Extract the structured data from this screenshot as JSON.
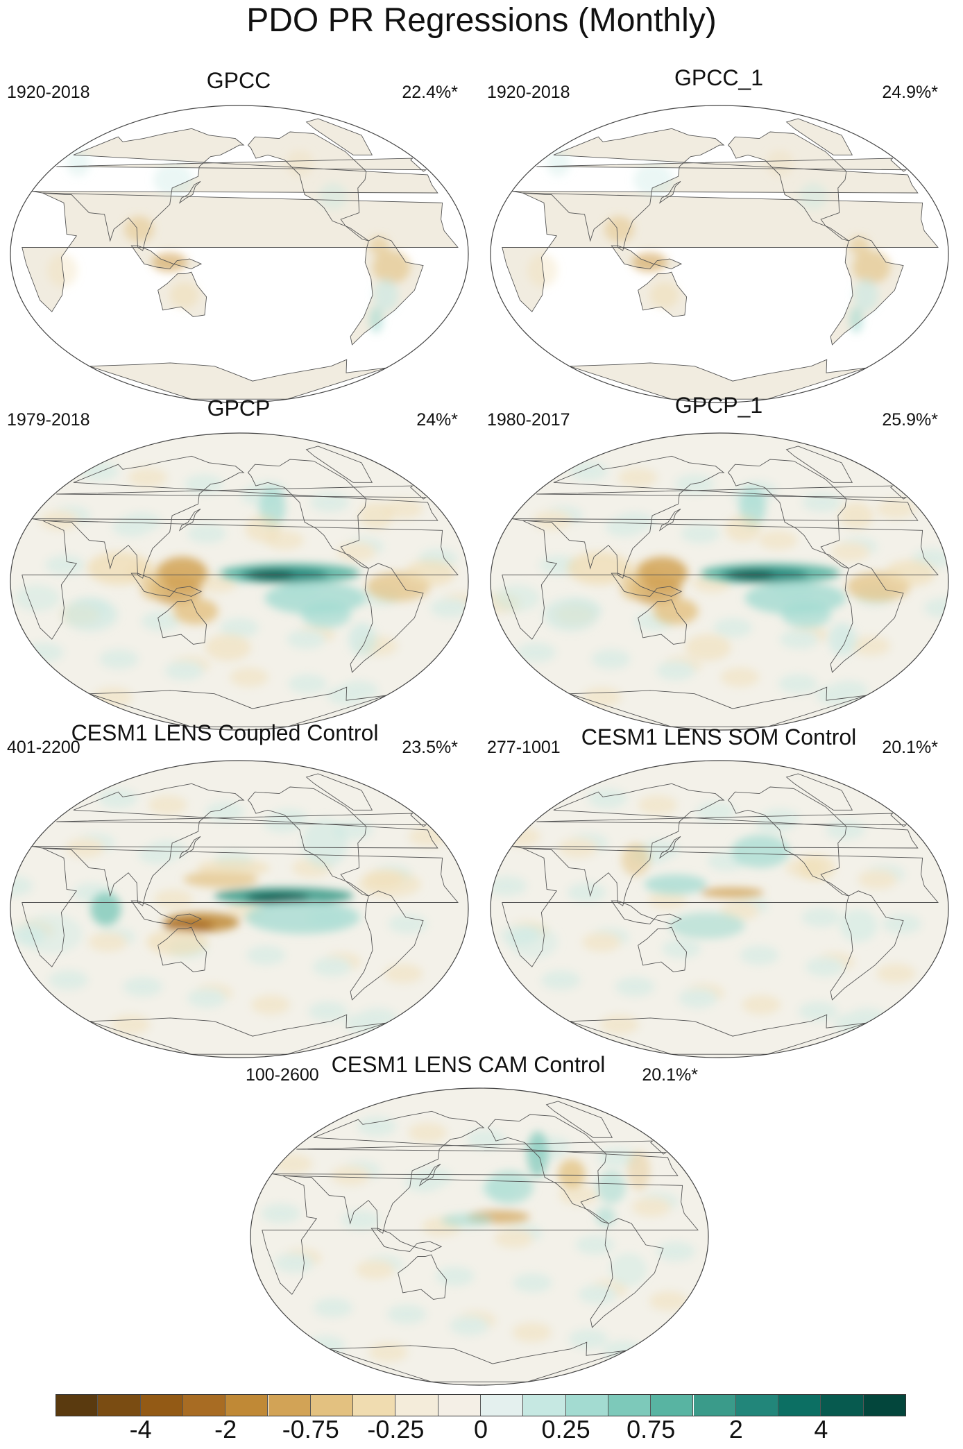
{
  "title": "PDO PR Regressions (Monthly)",
  "panels": [
    {
      "title": "GPCC",
      "period": "1920-2018",
      "variance": "22.4%*",
      "pattern": "land-only"
    },
    {
      "title": "GPCC_1",
      "period": "1920-2018",
      "variance": "24.9%*",
      "pattern": "land-only"
    },
    {
      "title": "GPCP",
      "period": "1979-2018",
      "variance": "24%*",
      "pattern": "strong-tropical"
    },
    {
      "title": "GPCP_1",
      "period": "1980-2017",
      "variance": "25.9%*",
      "pattern": "strong-tropical"
    },
    {
      "title": "CESM1 LENS Coupled Control",
      "period": "401-2200",
      "variance": "23.5%*",
      "pattern": "coupled"
    },
    {
      "title": "CESM1 LENS SOM Control",
      "period": "277-1001",
      "variance": "20.1%*",
      "pattern": "som"
    },
    {
      "title": "CESM1 LENS CAM Control",
      "period": "100-2600",
      "variance": "20.1%*",
      "pattern": "cam"
    }
  ],
  "colorbar": {
    "colors": [
      "#5a3a0f",
      "#7a4c12",
      "#935a15",
      "#a86c23",
      "#c08936",
      "#d2a356",
      "#e3c180",
      "#f0dcb0",
      "#f4ecda",
      "#f4efe6",
      "#e4f0ee",
      "#c6e8e2",
      "#a3dbd1",
      "#7dc9ba",
      "#58b4a2",
      "#3a9b8a",
      "#22867a",
      "#0c6f63",
      "#075a4f",
      "#03463c"
    ],
    "labels": [
      "-4",
      "-2",
      "-0.75",
      "-0.25",
      "0",
      "0.25",
      "0.75",
      "2",
      "4"
    ]
  }
}
